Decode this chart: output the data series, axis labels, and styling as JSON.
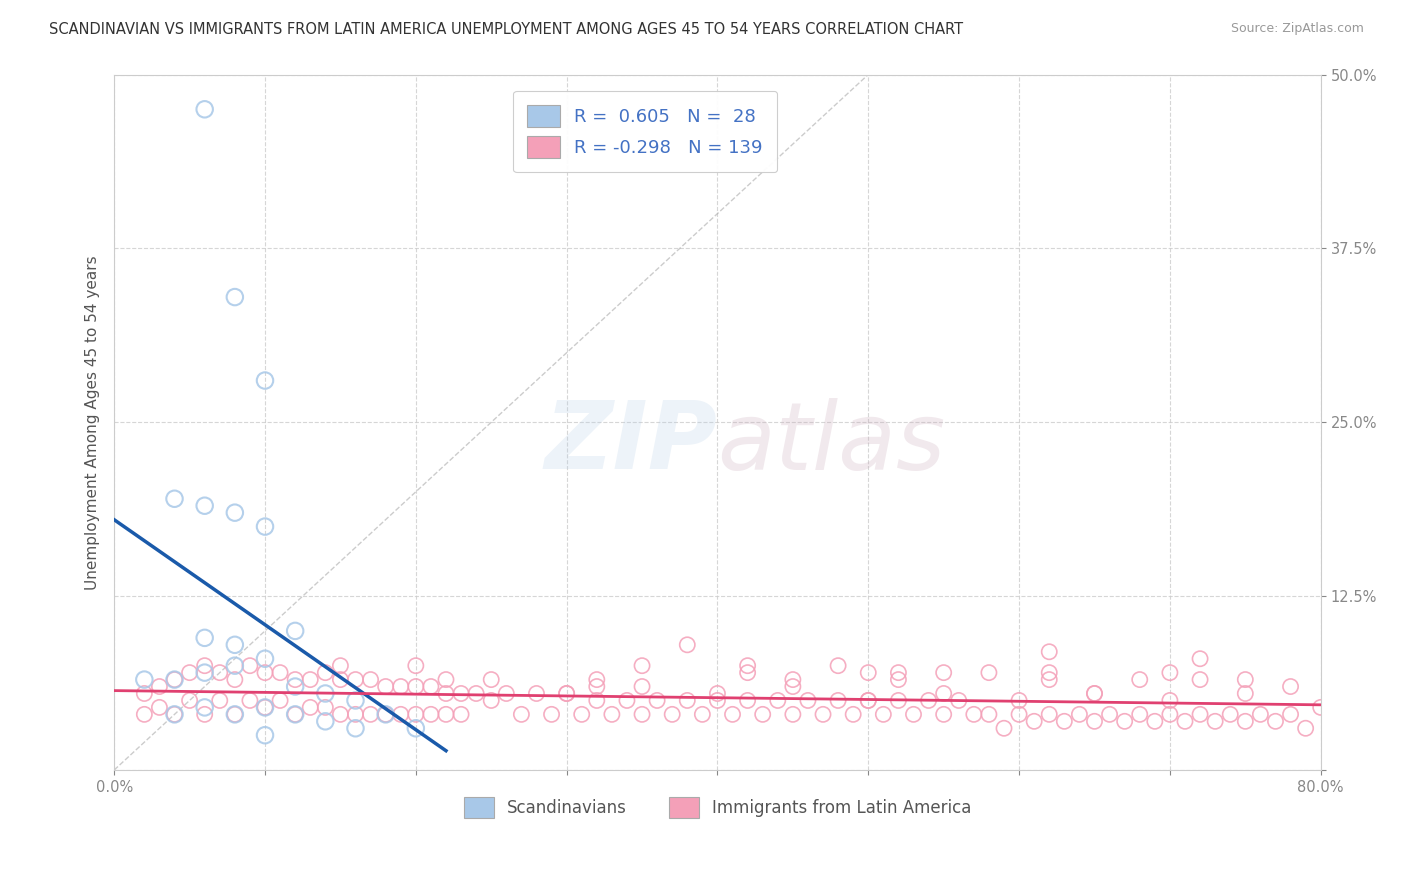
{
  "title": "SCANDINAVIAN VS IMMIGRANTS FROM LATIN AMERICA UNEMPLOYMENT AMONG AGES 45 TO 54 YEARS CORRELATION CHART",
  "source": "Source: ZipAtlas.com",
  "ylabel": "Unemployment Among Ages 45 to 54 years",
  "xlim": [
    0.0,
    0.8
  ],
  "ylim": [
    0.0,
    0.5
  ],
  "yticks": [
    0.0,
    0.125,
    0.25,
    0.375,
    0.5
  ],
  "xticks": [
    0.0,
    0.1,
    0.2,
    0.3,
    0.4,
    0.5,
    0.6,
    0.7,
    0.8
  ],
  "blue_R": 0.605,
  "blue_N": 28,
  "pink_R": -0.298,
  "pink_N": 139,
  "blue_color": "#a8c8e8",
  "pink_color": "#f4a0b8",
  "blue_edge_color": "#6090c0",
  "pink_edge_color": "#e06080",
  "blue_line_color": "#1a5aaa",
  "pink_line_color": "#e04070",
  "legend_blue_color": "#a8c8e8",
  "legend_pink_color": "#f4a0b8",
  "watermark_color": "#c8ddf0",
  "background_color": "#ffffff",
  "grid_color": "#cccccc",
  "label_color": "#4472c4",
  "text_color": "#555555",
  "blue_scatter_x": [
    0.06,
    0.08,
    0.1,
    0.04,
    0.06,
    0.08,
    0.1,
    0.12,
    0.06,
    0.08,
    0.02,
    0.04,
    0.06,
    0.08,
    0.1,
    0.12,
    0.14,
    0.16,
    0.18,
    0.04,
    0.06,
    0.08,
    0.1,
    0.12,
    0.14,
    0.16,
    0.2,
    0.1
  ],
  "blue_scatter_y": [
    0.475,
    0.34,
    0.28,
    0.195,
    0.19,
    0.185,
    0.175,
    0.1,
    0.095,
    0.09,
    0.065,
    0.065,
    0.07,
    0.075,
    0.08,
    0.06,
    0.055,
    0.05,
    0.04,
    0.04,
    0.045,
    0.04,
    0.045,
    0.04,
    0.035,
    0.03,
    0.03,
    0.025
  ],
  "pink_scatter_x": [
    0.02,
    0.02,
    0.03,
    0.03,
    0.04,
    0.04,
    0.05,
    0.05,
    0.06,
    0.06,
    0.07,
    0.07,
    0.08,
    0.08,
    0.09,
    0.09,
    0.1,
    0.1,
    0.11,
    0.11,
    0.12,
    0.12,
    0.13,
    0.13,
    0.14,
    0.14,
    0.15,
    0.15,
    0.16,
    0.16,
    0.17,
    0.17,
    0.18,
    0.18,
    0.19,
    0.19,
    0.2,
    0.2,
    0.21,
    0.21,
    0.22,
    0.22,
    0.23,
    0.23,
    0.24,
    0.25,
    0.26,
    0.27,
    0.28,
    0.29,
    0.3,
    0.31,
    0.32,
    0.33,
    0.34,
    0.35,
    0.36,
    0.37,
    0.38,
    0.39,
    0.4,
    0.41,
    0.42,
    0.43,
    0.44,
    0.45,
    0.46,
    0.47,
    0.48,
    0.49,
    0.5,
    0.51,
    0.52,
    0.53,
    0.54,
    0.55,
    0.56,
    0.57,
    0.58,
    0.59,
    0.6,
    0.61,
    0.62,
    0.63,
    0.64,
    0.65,
    0.66,
    0.67,
    0.68,
    0.69,
    0.7,
    0.71,
    0.72,
    0.73,
    0.74,
    0.75,
    0.76,
    0.77,
    0.78,
    0.79,
    0.25,
    0.35,
    0.45,
    0.55,
    0.65,
    0.75,
    0.3,
    0.4,
    0.5,
    0.6,
    0.7,
    0.8,
    0.15,
    0.45,
    0.65,
    0.35,
    0.55,
    0.75,
    0.2,
    0.5,
    0.7,
    0.38,
    0.62,
    0.72,
    0.48,
    0.58,
    0.68,
    0.78,
    0.42,
    0.52,
    0.82,
    0.22,
    0.32,
    0.62,
    0.72,
    0.52,
    0.42,
    0.32,
    0.62
  ],
  "pink_scatter_y": [
    0.055,
    0.04,
    0.06,
    0.045,
    0.065,
    0.04,
    0.07,
    0.05,
    0.075,
    0.04,
    0.07,
    0.05,
    0.065,
    0.04,
    0.075,
    0.05,
    0.07,
    0.045,
    0.07,
    0.05,
    0.065,
    0.04,
    0.065,
    0.045,
    0.07,
    0.045,
    0.065,
    0.04,
    0.065,
    0.04,
    0.065,
    0.04,
    0.06,
    0.04,
    0.06,
    0.04,
    0.06,
    0.04,
    0.06,
    0.04,
    0.055,
    0.04,
    0.055,
    0.04,
    0.055,
    0.05,
    0.055,
    0.04,
    0.055,
    0.04,
    0.055,
    0.04,
    0.05,
    0.04,
    0.05,
    0.04,
    0.05,
    0.04,
    0.05,
    0.04,
    0.05,
    0.04,
    0.05,
    0.04,
    0.05,
    0.04,
    0.05,
    0.04,
    0.05,
    0.04,
    0.05,
    0.04,
    0.05,
    0.04,
    0.05,
    0.04,
    0.05,
    0.04,
    0.04,
    0.03,
    0.04,
    0.035,
    0.04,
    0.035,
    0.04,
    0.035,
    0.04,
    0.035,
    0.04,
    0.035,
    0.04,
    0.035,
    0.04,
    0.035,
    0.04,
    0.035,
    0.04,
    0.035,
    0.04,
    0.03,
    0.065,
    0.06,
    0.06,
    0.055,
    0.055,
    0.055,
    0.055,
    0.055,
    0.05,
    0.05,
    0.05,
    0.045,
    0.075,
    0.065,
    0.055,
    0.075,
    0.07,
    0.065,
    0.075,
    0.07,
    0.07,
    0.09,
    0.085,
    0.08,
    0.075,
    0.07,
    0.065,
    0.06,
    0.075,
    0.07,
    0.03,
    0.065,
    0.06,
    0.07,
    0.065,
    0.065,
    0.07,
    0.065,
    0.065
  ]
}
